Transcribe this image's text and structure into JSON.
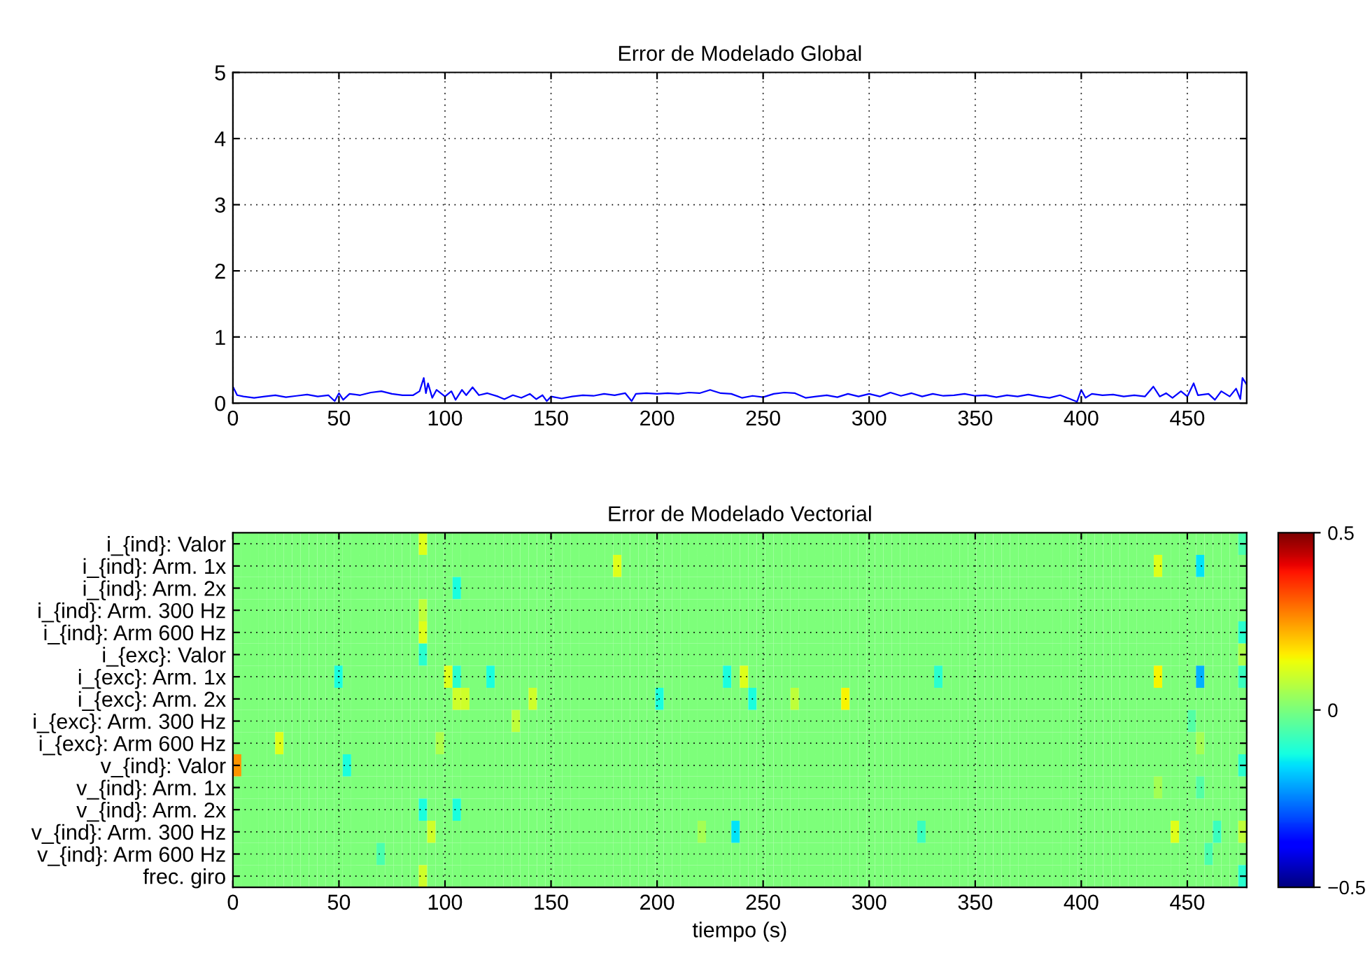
{
  "chart_data": [
    {
      "type": "line",
      "title": "Error de Modelado Global",
      "color": "#0000ff",
      "grid": true,
      "x": [
        0,
        2,
        5,
        10,
        15,
        20,
        25,
        30,
        35,
        40,
        45,
        48,
        50,
        52,
        55,
        60,
        65,
        70,
        75,
        80,
        85,
        88,
        90,
        91,
        92,
        94,
        96,
        100,
        103,
        105,
        108,
        110,
        113,
        116,
        120,
        125,
        128,
        132,
        136,
        140,
        143,
        146,
        148,
        150,
        155,
        160,
        165,
        170,
        175,
        180,
        185,
        188,
        190,
        195,
        200,
        205,
        210,
        215,
        220,
        225,
        230,
        235,
        240,
        245,
        250,
        255,
        260,
        265,
        270,
        275,
        280,
        285,
        290,
        295,
        300,
        305,
        310,
        315,
        320,
        325,
        330,
        335,
        340,
        345,
        350,
        355,
        360,
        365,
        370,
        375,
        380,
        385,
        390,
        395,
        398,
        400,
        402,
        405,
        410,
        415,
        420,
        425,
        430,
        434,
        437,
        440,
        443,
        447,
        450,
        453,
        455,
        460,
        463,
        466,
        470,
        473,
        475,
        476,
        478
      ],
      "values": [
        0.25,
        0.12,
        0.1,
        0.08,
        0.1,
        0.12,
        0.09,
        0.11,
        0.13,
        0.1,
        0.12,
        0.03,
        0.15,
        0.05,
        0.14,
        0.12,
        0.16,
        0.18,
        0.14,
        0.12,
        0.12,
        0.18,
        0.38,
        0.15,
        0.3,
        0.08,
        0.2,
        0.1,
        0.18,
        0.05,
        0.2,
        0.12,
        0.24,
        0.12,
        0.15,
        0.1,
        0.06,
        0.12,
        0.08,
        0.14,
        0.06,
        0.12,
        0.03,
        0.1,
        0.07,
        0.1,
        0.12,
        0.11,
        0.14,
        0.12,
        0.15,
        0.03,
        0.14,
        0.15,
        0.14,
        0.15,
        0.14,
        0.16,
        0.15,
        0.2,
        0.15,
        0.14,
        0.08,
        0.11,
        0.09,
        0.14,
        0.16,
        0.15,
        0.08,
        0.1,
        0.12,
        0.09,
        0.14,
        0.1,
        0.14,
        0.1,
        0.16,
        0.11,
        0.15,
        0.1,
        0.14,
        0.11,
        0.12,
        0.14,
        0.11,
        0.12,
        0.09,
        0.12,
        0.1,
        0.13,
        0.1,
        0.08,
        0.12,
        0.06,
        0.02,
        0.2,
        0.08,
        0.14,
        0.12,
        0.13,
        0.1,
        0.12,
        0.1,
        0.25,
        0.1,
        0.15,
        0.08,
        0.18,
        0.1,
        0.3,
        0.12,
        0.14,
        0.05,
        0.18,
        0.1,
        0.22,
        0.06,
        0.38,
        0.28
      ],
      "xlim": [
        0,
        478
      ],
      "ylim": [
        0,
        5
      ],
      "xticks": [
        0,
        50,
        100,
        150,
        200,
        250,
        300,
        350,
        400,
        450
      ],
      "yticks": [
        0,
        1,
        2,
        3,
        4,
        5
      ]
    },
    {
      "type": "heatmap",
      "title": "Error de Modelado Vectorial",
      "xlabel": "tiempo (s)",
      "grid": true,
      "y_categories": [
        "i_{ind}: Valor",
        "i_{ind}: Arm. 1x",
        "i_{ind}: Arm. 2x",
        "i_{ind}: Arm. 300 Hz",
        "i_{ind}: Arm 600 Hz",
        "i_{exc}: Valor",
        "i_{exc}: Arm. 1x",
        "i_{exc}: Arm. 2x",
        "i_{exc}: Arm. 300 Hz",
        "i_{exc}: Arm 600 Hz",
        "v_{ind}: Valor",
        "v_{ind}: Arm. 1x",
        "v_{ind}: Arm. 2x",
        "v_{ind}: Arm. 300 Hz",
        "v_{ind}: Arm 600 Hz",
        "frec. giro"
      ],
      "xlim": [
        0,
        478
      ],
      "xticks": [
        0,
        50,
        100,
        150,
        200,
        250,
        300,
        350,
        400,
        450
      ],
      "clim": [
        -0.5,
        0.5
      ],
      "cticks": [
        {
          "value": -0.5,
          "label": "−0.5"
        },
        0,
        0.5
      ],
      "cells": [
        [
          0,
          0,
          0,
          0,
          0,
          0,
          0,
          0,
          0,
          0,
          0,
          0,
          0,
          0,
          0,
          0,
          0,
          0,
          0,
          0,
          0,
          0,
          0.12,
          0,
          0,
          0,
          0,
          0,
          0,
          0,
          0,
          0,
          0,
          0,
          0,
          0,
          0,
          0,
          0,
          0,
          0,
          0,
          0,
          0,
          0,
          0,
          0,
          0,
          0,
          0,
          0,
          0,
          0,
          0,
          0,
          0,
          0,
          0,
          0,
          0,
          0,
          0,
          0,
          0,
          0,
          0,
          0,
          0,
          0,
          0,
          0,
          0,
          0,
          0,
          0,
          0,
          0,
          0,
          0,
          0,
          0,
          0,
          0,
          0,
          0,
          0,
          0,
          0,
          0,
          0,
          0,
          0,
          0,
          0,
          0,
          0,
          0,
          0,
          0,
          0,
          0,
          0,
          0,
          0,
          0,
          0,
          0,
          0,
          0,
          0,
          0,
          0,
          0,
          0,
          0,
          0,
          0,
          0,
          0,
          -0.06
        ],
        [
          0,
          0,
          0,
          0,
          0,
          0,
          0,
          0,
          0,
          0,
          0,
          0,
          0,
          0,
          0,
          0,
          0,
          0,
          0,
          0,
          0,
          0,
          0,
          0,
          0,
          0,
          0,
          0,
          0,
          0,
          0,
          0,
          0,
          0,
          0,
          0,
          0,
          0,
          0,
          0,
          0,
          0,
          0,
          0,
          0,
          0.12,
          0,
          0,
          0,
          0,
          0,
          0,
          0,
          0,
          0,
          0,
          0,
          0,
          0,
          0,
          0,
          0,
          0,
          0,
          0,
          0,
          0,
          0,
          0,
          0,
          0,
          0,
          0,
          0,
          0,
          0,
          0,
          0,
          0,
          0,
          0,
          0,
          0,
          0,
          0,
          0,
          0,
          0,
          0,
          0,
          0,
          0,
          0,
          0,
          0,
          0,
          0,
          0,
          0,
          0,
          0,
          0,
          0,
          0,
          0,
          0,
          0,
          0,
          0,
          0.12,
          0,
          0,
          0,
          0,
          -0.15,
          0,
          0,
          0,
          0,
          0
        ],
        [
          0,
          0,
          0,
          0,
          0,
          0,
          0,
          0,
          0,
          0,
          0,
          0,
          0,
          0,
          0,
          0,
          0,
          0,
          0,
          0,
          0,
          0,
          0,
          0,
          0,
          0,
          -0.12,
          0,
          0,
          0,
          0,
          0,
          0,
          0,
          0,
          0,
          0,
          0,
          0,
          0,
          0,
          0,
          0,
          0,
          0,
          0,
          0,
          0,
          0,
          0,
          0,
          0,
          0,
          0,
          0,
          0,
          0,
          0,
          0,
          0,
          0,
          0,
          0,
          0,
          0,
          0,
          0,
          0,
          0,
          0,
          0,
          0,
          0,
          0,
          0,
          0,
          0,
          0,
          0,
          0,
          0,
          0,
          0,
          0,
          0,
          0,
          0,
          0,
          0,
          0,
          0,
          0,
          0,
          0,
          0,
          0,
          0,
          0,
          0,
          0,
          0,
          0,
          0,
          0,
          0,
          0,
          0,
          0,
          0,
          0,
          0,
          0,
          0,
          0,
          0,
          0,
          0,
          0,
          0,
          0
        ],
        [
          0,
          0,
          0,
          0,
          0,
          0,
          0,
          0,
          0,
          0,
          0,
          0,
          0,
          0,
          0,
          0,
          0,
          0,
          0,
          0,
          0,
          0,
          0.08,
          0,
          0,
          0,
          0,
          0,
          0,
          0,
          0,
          0,
          0,
          0,
          0,
          0,
          0,
          0,
          0,
          0,
          0,
          0,
          0,
          0,
          0,
          0,
          0,
          0,
          0,
          0,
          0,
          0,
          0,
          0,
          0,
          0,
          0,
          0,
          0,
          0,
          0,
          0,
          0,
          0,
          0,
          0,
          0,
          0,
          0,
          0,
          0,
          0,
          0,
          0,
          0,
          0,
          0,
          0,
          0,
          0,
          0,
          0,
          0,
          0,
          0,
          0,
          0,
          0,
          0,
          0,
          0,
          0,
          0,
          0,
          0,
          0,
          0,
          0,
          0,
          0,
          0,
          0,
          0,
          0,
          0,
          0,
          0,
          0,
          0,
          0,
          0,
          0,
          0,
          0,
          0,
          0,
          0,
          0,
          0,
          0
        ],
        [
          0,
          0,
          0,
          0,
          0,
          0,
          0,
          0,
          0,
          0,
          0,
          0,
          0,
          0,
          0,
          0,
          0,
          0,
          0,
          0,
          0,
          0,
          0.12,
          0,
          0,
          0,
          0,
          0,
          0,
          0,
          0,
          0,
          0,
          0,
          0,
          0,
          0,
          0,
          0,
          0,
          0,
          0,
          0,
          0,
          0,
          0,
          0,
          0,
          0,
          0,
          0,
          0,
          0,
          0,
          0,
          0,
          0,
          0,
          0,
          0,
          0,
          0,
          0,
          0,
          0,
          0,
          0,
          0,
          0,
          0,
          0,
          0,
          0,
          0,
          0,
          0,
          0,
          0,
          0,
          0,
          0,
          0,
          0,
          0,
          0,
          0,
          0,
          0,
          0,
          0,
          0,
          0,
          0,
          0,
          0,
          0,
          0,
          0,
          0,
          0,
          0,
          0,
          0,
          0,
          0,
          0,
          0,
          0,
          0,
          0,
          0,
          0,
          0,
          0,
          0,
          0,
          0,
          0,
          0,
          -0.1
        ],
        [
          0,
          0,
          0,
          0,
          0,
          0,
          0,
          0,
          0,
          0,
          0,
          0,
          0,
          0,
          0,
          0,
          0,
          0,
          0,
          0,
          0,
          0,
          -0.1,
          0,
          0,
          0,
          0,
          0,
          0,
          0,
          0,
          0,
          0,
          0,
          0,
          0,
          0,
          0,
          0,
          0,
          0,
          0,
          0,
          0,
          0,
          0,
          0,
          0,
          0,
          0,
          0,
          0,
          0,
          0,
          0,
          0,
          0,
          0,
          0,
          0,
          0,
          0,
          0,
          0,
          0,
          0,
          0,
          0,
          0,
          0,
          0,
          0,
          0,
          0,
          0,
          0,
          0,
          0,
          0,
          0,
          0,
          0,
          0,
          0,
          0,
          0,
          0,
          0,
          0,
          0,
          0,
          0,
          0,
          0,
          0,
          0,
          0,
          0,
          0,
          0,
          0,
          0,
          0,
          0,
          0,
          0,
          0,
          0,
          0,
          0,
          0,
          0,
          0,
          0,
          0,
          0,
          0,
          0,
          0,
          0.06
        ],
        [
          0,
          0,
          0,
          0,
          0,
          0,
          0,
          0,
          0,
          0,
          0,
          0,
          -0.12,
          0,
          0,
          0,
          0,
          0,
          0,
          0,
          0,
          0,
          0,
          0,
          0,
          0.12,
          -0.1,
          0,
          0,
          0,
          -0.12,
          0,
          0,
          0,
          0,
          0,
          0,
          0,
          0,
          0,
          0,
          0,
          0,
          0,
          0,
          0,
          0,
          0,
          0,
          0,
          0,
          0,
          0,
          0,
          0,
          0,
          0,
          0,
          -0.12,
          0,
          0.12,
          0,
          0,
          0,
          0,
          0,
          0,
          0,
          0,
          0,
          0,
          0,
          0,
          0,
          0,
          0,
          0,
          0,
          0,
          0,
          0,
          0,
          0,
          -0.1,
          0,
          0,
          0,
          0,
          0,
          0,
          0,
          0,
          0,
          0,
          0,
          0,
          0,
          0,
          0,
          0,
          0,
          0,
          0,
          0,
          0,
          0,
          0,
          0,
          0,
          0.15,
          0,
          0,
          0,
          0,
          -0.2,
          0,
          0,
          0,
          0,
          -0.08
        ],
        [
          0,
          0,
          0,
          0,
          0,
          0,
          0,
          0,
          0,
          0,
          0,
          0,
          0,
          0,
          0,
          0,
          0,
          0,
          0,
          0,
          0,
          0,
          0,
          0,
          0,
          0,
          0.1,
          0.1,
          0,
          0,
          0,
          0,
          0,
          0,
          0,
          0.1,
          0,
          0,
          0,
          0,
          0,
          0,
          0,
          0,
          0,
          0,
          0,
          0,
          0,
          0,
          -0.12,
          0,
          0,
          0,
          0,
          0,
          0,
          0,
          0,
          0,
          0,
          -0.12,
          0,
          0,
          0,
          0,
          0.08,
          0,
          0,
          0,
          0,
          0,
          0.15,
          0,
          0,
          0,
          0,
          0,
          0,
          0,
          0,
          0,
          0,
          0,
          0,
          0,
          0,
          0,
          0,
          0,
          0,
          0,
          0,
          0,
          0,
          0,
          0,
          0,
          0,
          0,
          0,
          0,
          0,
          0,
          0,
          0,
          0,
          0,
          0,
          0,
          0,
          0,
          0,
          0,
          0,
          0,
          0,
          0,
          0,
          0
        ],
        [
          0,
          0,
          0,
          0,
          0,
          0,
          0,
          0,
          0,
          0,
          0,
          0,
          0,
          0,
          0,
          0,
          0,
          0,
          0,
          0,
          0,
          0,
          0,
          0,
          0,
          0,
          0,
          0,
          0,
          0,
          0,
          0,
          0,
          0.08,
          0,
          0,
          0,
          0,
          0,
          0,
          0,
          0,
          0,
          0,
          0,
          0,
          0,
          0,
          0,
          0,
          0,
          0,
          0,
          0,
          0,
          0,
          0,
          0,
          0,
          0,
          0,
          0,
          0,
          0,
          0,
          0,
          0,
          0,
          0,
          0,
          0,
          0,
          0,
          0,
          0,
          0,
          0,
          0,
          0,
          0,
          0,
          0,
          0,
          0,
          0,
          0,
          0,
          0,
          0,
          0,
          0,
          0,
          0,
          0,
          0,
          0,
          0,
          0,
          0,
          0,
          0,
          0,
          0,
          0,
          0,
          0,
          0,
          0,
          0,
          0,
          0,
          0,
          0,
          -0.05,
          0,
          0,
          0,
          0,
          0,
          0
        ],
        [
          0,
          0,
          0,
          0,
          0,
          0.12,
          0,
          0,
          0,
          0,
          0,
          0,
          0,
          0,
          0,
          0,
          0,
          0,
          0,
          0,
          0,
          0,
          0,
          0,
          0.06,
          0,
          0,
          0,
          0,
          0,
          0,
          0,
          0,
          0,
          0,
          0,
          0,
          0,
          0,
          0,
          0,
          0,
          0,
          0,
          0,
          0,
          0,
          0,
          0,
          0,
          0,
          0,
          0,
          0,
          0,
          0,
          0,
          0,
          0,
          0,
          0,
          0,
          0,
          0,
          0,
          0,
          0,
          0,
          0,
          0,
          0,
          0,
          0,
          0,
          0,
          0,
          0,
          0,
          0,
          0,
          0,
          0,
          0,
          0,
          0,
          0,
          0,
          0,
          0,
          0,
          0,
          0,
          0,
          0,
          0,
          0,
          0,
          0,
          0,
          0,
          0,
          0,
          0,
          0,
          0,
          0,
          0,
          0,
          0,
          0,
          0,
          0,
          0,
          0,
          0.05,
          0,
          0,
          0,
          0,
          0
        ],
        [
          0.25,
          0,
          0,
          0,
          0,
          0,
          0,
          0,
          0,
          0,
          0,
          0,
          0,
          -0.12,
          0,
          0,
          0,
          0,
          0,
          0,
          0,
          0,
          0,
          0,
          0,
          0,
          0,
          0,
          0,
          0,
          0,
          0,
          0,
          0,
          0,
          0,
          0,
          0,
          0,
          0,
          0,
          0,
          0,
          0,
          0,
          0,
          0,
          0,
          0,
          0,
          0,
          0,
          0,
          0,
          0,
          0,
          0,
          0,
          0,
          0,
          0,
          0,
          0,
          0,
          0,
          0,
          0,
          0,
          0,
          0,
          0,
          0,
          0,
          0,
          0,
          0,
          0,
          0,
          0,
          0,
          0,
          0,
          0,
          0,
          0,
          0,
          0,
          0,
          0,
          0,
          0,
          0,
          0,
          0,
          0,
          0,
          0,
          0,
          0,
          0,
          0,
          0,
          0,
          0,
          0,
          0,
          0,
          0,
          0,
          0,
          0,
          0,
          0,
          0,
          0,
          0,
          0,
          0,
          0,
          -0.1
        ],
        [
          0,
          0,
          0,
          0,
          0,
          0,
          0,
          0,
          0,
          0,
          0,
          0,
          0,
          0,
          0,
          0,
          0,
          0,
          0,
          0,
          0,
          0,
          0,
          0,
          0,
          0,
          0,
          0,
          0,
          0,
          0,
          0,
          0,
          0,
          0,
          0,
          0,
          0,
          0,
          0,
          0,
          0,
          0,
          0,
          0,
          0,
          0,
          0,
          0,
          0,
          0,
          0,
          0,
          0,
          0,
          0,
          0,
          0,
          0,
          0,
          0,
          0,
          0,
          0,
          0,
          0,
          0,
          0,
          0,
          0,
          0,
          0,
          0,
          0,
          0,
          0,
          0,
          0,
          0,
          0,
          0,
          0,
          0,
          0,
          0,
          0,
          0,
          0,
          0,
          0,
          0,
          0,
          0,
          0,
          0,
          0,
          0,
          0,
          0,
          0,
          0,
          0,
          0,
          0,
          0,
          0,
          0,
          0,
          0,
          0.05,
          0,
          0,
          0,
          0,
          -0.05,
          0,
          0,
          0,
          0,
          0
        ],
        [
          0,
          0,
          0,
          0,
          0,
          0,
          0,
          0,
          0,
          0,
          0,
          0,
          0,
          0,
          0,
          0,
          0,
          0,
          0,
          0,
          0,
          0,
          -0.12,
          0,
          0,
          0,
          -0.12,
          0,
          0,
          0,
          0,
          0,
          0,
          0,
          0,
          0,
          0,
          0,
          0,
          0,
          0,
          0,
          0,
          0,
          0,
          0,
          0,
          0,
          0,
          0,
          0,
          0,
          0,
          0,
          0,
          0,
          0,
          0,
          0,
          0,
          0,
          0,
          0,
          0,
          0,
          0,
          0,
          0,
          0,
          0,
          0,
          0,
          0,
          0,
          0,
          0,
          0,
          0,
          0,
          0,
          0,
          0,
          0,
          0,
          0,
          0,
          0,
          0,
          0,
          0,
          0,
          0,
          0,
          0,
          0,
          0,
          0,
          0,
          0,
          0,
          0,
          0,
          0,
          0,
          0,
          0,
          0,
          0,
          0,
          0,
          0,
          0,
          0,
          0,
          0,
          0,
          0,
          0,
          0,
          0
        ],
        [
          0,
          0,
          0,
          0,
          0,
          0,
          0,
          0,
          0,
          0,
          0,
          0,
          0,
          0,
          0,
          0,
          0,
          0,
          0,
          0,
          0,
          0,
          0,
          0.1,
          0,
          0,
          0,
          0,
          0,
          0,
          0,
          0,
          0,
          0,
          0,
          0,
          0,
          0,
          0,
          0,
          0,
          0,
          0,
          0,
          0,
          0,
          0,
          0,
          0,
          0,
          0,
          0,
          0,
          0,
          0,
          0.05,
          0,
          0,
          0,
          -0.15,
          0,
          0,
          0,
          0,
          0,
          0,
          0,
          0,
          0,
          0,
          0,
          0,
          0,
          0,
          0,
          0,
          0,
          0,
          0,
          0,
          0,
          -0.08,
          0,
          0,
          0,
          0,
          0,
          0,
          0,
          0,
          0,
          0,
          0,
          0,
          0,
          0,
          0,
          0,
          0,
          0,
          0,
          0,
          0,
          0,
          0,
          0,
          0,
          0,
          0,
          0,
          0,
          0.12,
          0,
          0,
          0,
          0,
          -0.08,
          0,
          0,
          0.08
        ],
        [
          0,
          0,
          0,
          0,
          0,
          0,
          0,
          0,
          0,
          0,
          0,
          0,
          0,
          0,
          0,
          0,
          0,
          -0.06,
          0,
          0,
          0,
          0,
          0,
          0,
          0,
          0,
          0,
          0,
          0,
          0,
          0,
          0,
          0,
          0,
          0,
          0,
          0,
          0,
          0,
          0,
          0,
          0,
          0,
          0,
          0,
          0,
          0,
          0,
          0,
          0,
          0,
          0,
          0,
          0,
          0,
          0,
          0,
          0,
          0,
          0,
          0,
          0,
          0,
          0,
          0,
          0,
          0,
          0,
          0,
          0,
          0,
          0,
          0,
          0,
          0,
          0,
          0,
          0,
          0,
          0,
          0,
          0,
          0,
          0,
          0,
          0,
          0,
          0,
          0,
          0,
          0,
          0,
          0,
          0,
          0,
          0,
          0,
          0,
          0,
          0,
          0,
          0,
          0,
          0,
          0,
          0,
          0,
          0,
          0,
          0,
          0,
          0,
          0,
          0,
          0,
          -0.06,
          0,
          0,
          0,
          0
        ],
        [
          0,
          0,
          0,
          0,
          0,
          0,
          0,
          0,
          0,
          0,
          0,
          0,
          0,
          0,
          0,
          0,
          0,
          0,
          0,
          0,
          0,
          0,
          0.1,
          0,
          0,
          0,
          0,
          0,
          0,
          0,
          0,
          0,
          0,
          0,
          0,
          0,
          0,
          0,
          0,
          0,
          0,
          0,
          0,
          0,
          0,
          0,
          0,
          0,
          0,
          0,
          0,
          0,
          0,
          0,
          0,
          0,
          0,
          0,
          0,
          0,
          0,
          0,
          0,
          0,
          0,
          0,
          0,
          0,
          0,
          0,
          0,
          0,
          0,
          0,
          0,
          0,
          0,
          0,
          0,
          0,
          0,
          0,
          0,
          0,
          0,
          0,
          0,
          0,
          0,
          0,
          0,
          0,
          0,
          0,
          0,
          0,
          0,
          0,
          0,
          0,
          0,
          0,
          0,
          0,
          0,
          0,
          0,
          0,
          0,
          0,
          0,
          0,
          0,
          0,
          0,
          0,
          0,
          0,
          0,
          -0.1
        ]
      ]
    }
  ]
}
